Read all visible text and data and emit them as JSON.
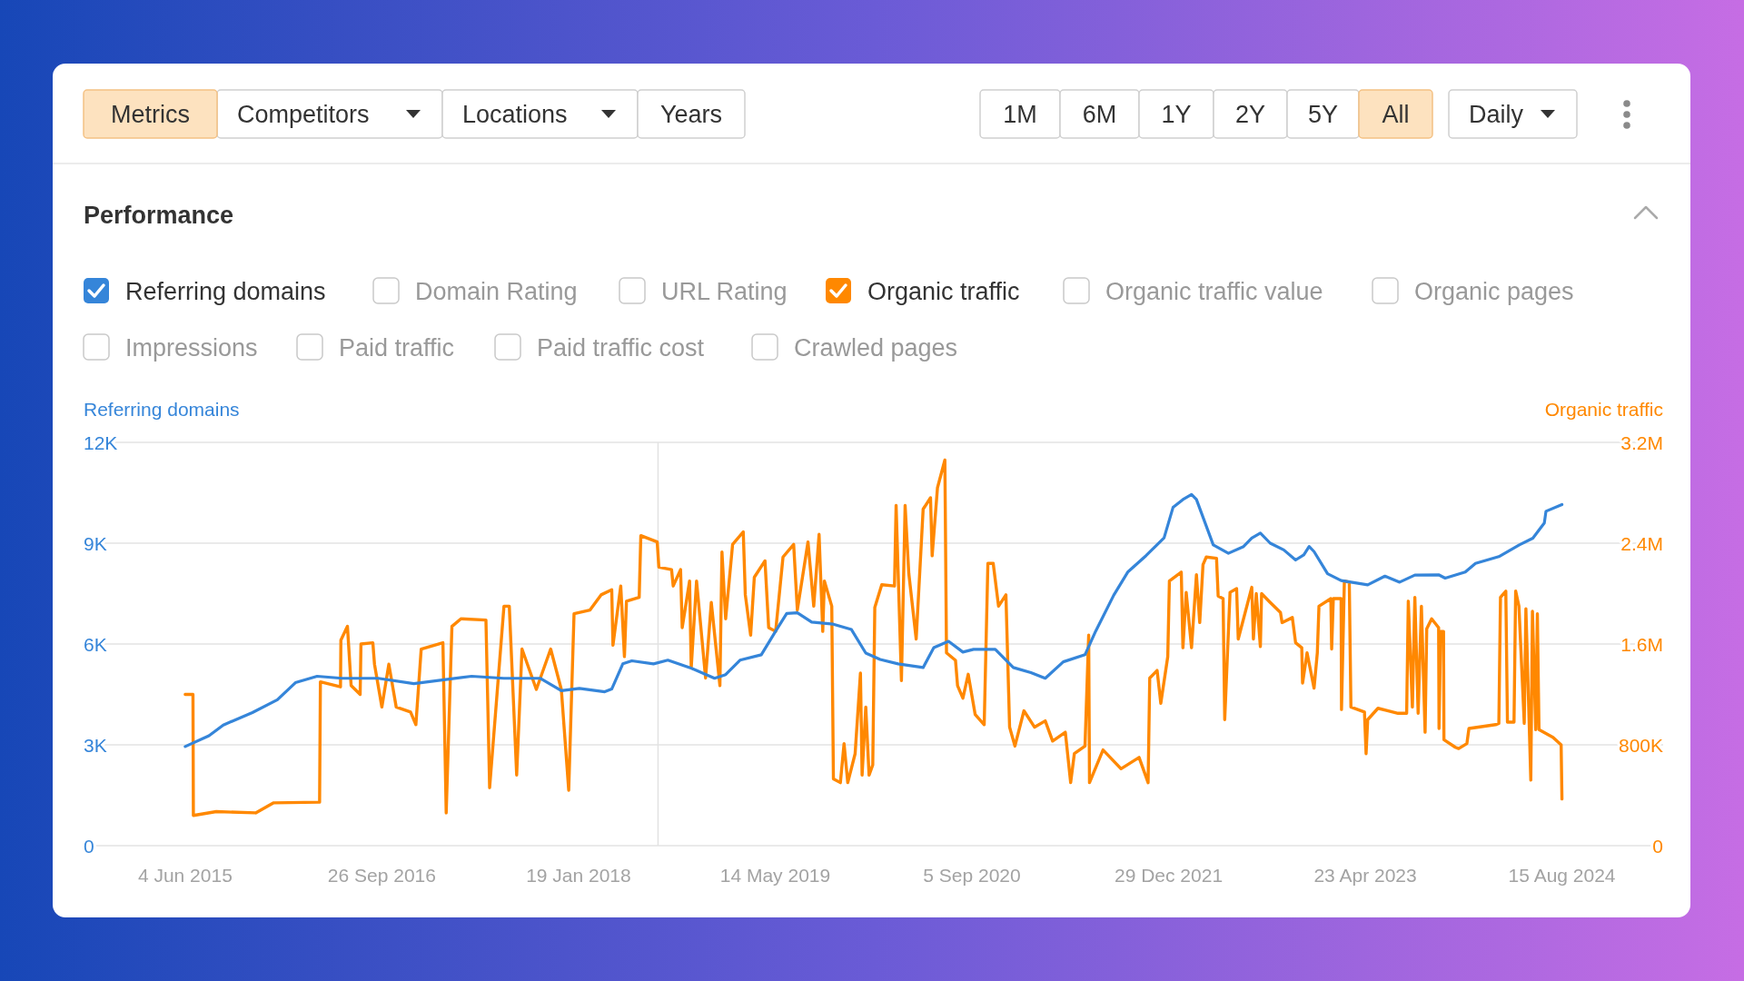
{
  "chart_data": {
    "type": "line",
    "title": "Performance",
    "ylabel": "Referring domains",
    "y2label": "Organic traffic",
    "annotations": [
      "Metrics",
      "Competitors",
      "Locations",
      "Years",
      "1M",
      "6M",
      "1Y",
      "2Y",
      "5Y",
      "All",
      "Daily",
      "Domain Rating",
      "URL Rating",
      "Organic traffic value",
      "Organic pages",
      "Impressions",
      "Paid traffic",
      "Paid traffic cost",
      "Crawled pages"
    ],
    "xlim": [
      "2014-09-29",
      "2025-04-19"
    ],
    "xticks": [
      {
        "value": "2015-06-04",
        "label": "4 Jun 2015"
      },
      {
        "value": "2016-09-26",
        "label": "26 Sep 2016"
      },
      {
        "value": "2018-01-19",
        "label": "19 Jan 2018"
      },
      {
        "value": "2019-05-14",
        "label": "14 May 2019"
      },
      {
        "value": "2020-09-05",
        "label": "5 Sep 2020"
      },
      {
        "value": "2021-12-29",
        "label": "29 Dec 2021"
      },
      {
        "value": "2023-04-23",
        "label": "23 Apr 2023"
      },
      {
        "value": "2024-08-15",
        "label": "15 Aug 2024"
      }
    ],
    "ylim": [
      0,
      12000
    ],
    "yticks": [
      0,
      {
        "value": 3000,
        "label": "3K"
      },
      {
        "value": 6000,
        "label": "6K"
      },
      {
        "value": 9000,
        "label": "9K"
      },
      {
        "value": 12000,
        "label": "12K"
      }
    ],
    "y2lim": [
      0,
      3200000
    ],
    "y2ticks": [
      0,
      {
        "value": 800000,
        "label": "800K"
      },
      {
        "value": 1600000,
        "label": "1.6M"
      },
      {
        "value": 2400000,
        "label": "2.4M"
      },
      {
        "value": 3200000,
        "label": "3.2M"
      }
    ],
    "grid": "y",
    "legend": "top left",
    "ref_lines": [
      {
        "axis": "x",
        "value": "2018-08-01",
        "color": "#e2e2e2"
      }
    ],
    "series": [
      {
        "name": "Referring domains",
        "color": "#3585d9",
        "x": [
          "2015-06-04",
          "2015-08-01",
          "2015-09-05",
          "2015-11-15",
          "2016-01-15",
          "2016-02-28",
          "2016-04-21",
          "2016-06-21",
          "2016-09-17",
          "2016-12-13",
          "2017-05-03",
          "2017-07-21",
          "2017-10-17",
          "2017-12-08",
          "2018-01-21",
          "2018-03-24",
          "2018-04-10",
          "2018-05-07",
          "2018-05-29",
          "2018-07-21",
          "2018-08-25",
          "2018-10-17",
          "2018-12-17",
          "2019-01-13",
          "2019-02-17",
          "2019-04-10",
          "2019-05-15",
          "2019-06-11",
          "2019-07-07",
          "2019-08-11",
          "2019-10-03",
          "2019-11-16",
          "2019-12-21",
          "2020-01-25",
          "2020-03-09",
          "2020-05-09",
          "2020-06-04",
          "2020-07-10",
          "2020-08-14",
          "2020-09-09",
          "2020-11-01",
          "2020-12-15",
          "2021-01-27",
          "2021-03-03",
          "2021-04-16",
          "2021-06-08",
          "2021-07-04",
          "2021-08-17",
          "2021-09-21",
          "2021-11-04",
          "2021-12-18",
          "2022-01-09",
          "2022-02-02",
          "2022-02-23",
          "2022-03-07",
          "2022-04-17",
          "2022-05-24",
          "2022-06-30",
          "2022-07-20",
          "2022-08-10",
          "2022-09-03",
          "2022-10-06",
          "2022-11-04",
          "2022-11-24",
          "2022-12-07",
          "2022-12-19",
          "2023-01-21",
          "2023-02-23",
          "2023-04-29",
          "2023-06-10",
          "2023-07-16",
          "2023-08-22",
          "2023-10-19",
          "2023-11-04",
          "2023-12-23",
          "2024-01-17",
          "2024-03-14",
          "2024-05-03",
          "2024-06-05",
          "2024-07-03",
          "2024-07-07",
          "2024-08-15"
        ],
        "values": [
          2950,
          3270,
          3590,
          3960,
          4340,
          4850,
          5040,
          4980,
          4980,
          4820,
          5040,
          4980,
          4980,
          4610,
          4680,
          4580,
          4660,
          5410,
          5500,
          5410,
          5520,
          5300,
          4980,
          5090,
          5520,
          5680,
          6380,
          6910,
          6930,
          6650,
          6590,
          6430,
          5730,
          5540,
          5410,
          5300,
          5890,
          6080,
          5760,
          5840,
          5840,
          5300,
          5150,
          4980,
          5470,
          5680,
          6380,
          7450,
          8150,
          8630,
          9160,
          10070,
          10300,
          10450,
          10300,
          8950,
          8700,
          8900,
          9150,
          9300,
          9000,
          8800,
          8500,
          8650,
          8900,
          8750,
          8090,
          7890,
          7760,
          8020,
          7840,
          8050,
          8060,
          7960,
          8140,
          8400,
          8600,
          8950,
          9150,
          9600,
          9950,
          10150
        ]
      },
      {
        "name": "Organic traffic",
        "color": "#ff8800",
        "axis": "y2",
        "x": [
          "2015-06-04",
          "2015-06-23",
          "2015-06-24",
          "2015-08-19",
          "2015-11-23",
          "2016-01-06",
          "2016-04-27",
          "2016-04-29",
          "2016-06-17",
          "2016-06-18",
          "2016-07-04",
          "2016-07-13",
          "2016-08-04",
          "2016-08-06",
          "2016-09-04",
          "2016-09-08",
          "2016-09-26",
          "2016-10-13",
          "2016-10-31",
          "2016-12-05",
          "2016-12-18",
          "2016-12-31",
          "2017-02-22",
          "2017-03-02",
          "2017-03-16",
          "2017-04-07",
          "2017-06-07",
          "2017-06-16",
          "2017-07-21",
          "2017-08-03",
          "2017-08-21",
          "2017-09-03",
          "2017-10-08",
          "2017-11-12",
          "2017-12-08",
          "2017-12-26",
          "2018-01-08",
          "2018-02-16",
          "2018-03-15",
          "2018-04-10",
          "2018-04-13",
          "2018-05-02",
          "2018-05-11",
          "2018-05-16",
          "2018-06-16",
          "2018-06-20",
          "2018-07-30",
          "2018-08-03",
          "2018-09-03",
          "2018-09-07",
          "2018-09-25",
          "2018-09-29",
          "2018-10-17",
          "2018-10-21",
          "2018-11-03",
          "2018-11-25",
          "2018-12-09",
          "2018-12-30",
          "2019-01-04",
          "2019-01-13",
          "2019-01-30",
          "2019-02-25",
          "2019-03-02",
          "2019-03-15",
          "2019-03-24",
          "2019-04-19",
          "2019-04-28",
          "2019-05-15",
          "2019-06-02",
          "2019-06-28",
          "2019-07-07",
          "2019-08-02",
          "2019-08-16",
          "2019-08-29",
          "2019-09-07",
          "2019-09-11",
          "2019-09-29",
          "2019-10-03",
          "2019-10-20",
          "2019-10-29",
          "2019-11-07",
          "2019-11-25",
          "2019-12-08",
          "2019-12-12",
          "2019-12-21",
          "2019-12-29",
          "2020-01-07",
          "2020-01-12",
          "2020-01-29",
          "2020-02-29",
          "2020-03-04",
          "2020-03-17",
          "2020-03-26",
          "2020-04-04",
          "2020-04-22",
          "2020-05-09",
          "2020-05-27",
          "2020-05-31",
          "2020-06-13",
          "2020-07-01",
          "2020-07-05",
          "2020-07-27",
          "2020-08-01",
          "2020-08-14",
          "2020-08-27",
          "2020-09-13",
          "2020-10-05",
          "2020-10-14",
          "2020-10-27",
          "2020-11-09",
          "2020-11-27",
          "2020-12-06",
          "2020-12-19",
          "2021-01-10",
          "2021-02-05",
          "2021-03-03",
          "2021-03-21",
          "2021-04-21",
          "2021-05-04",
          "2021-05-13",
          "2021-06-08",
          "2021-06-17",
          "2021-06-19",
          "2021-07-22",
          "2021-09-04",
          "2021-10-18",
          "2021-11-09",
          "2021-11-13",
          "2021-12-01",
          "2021-12-10",
          "2021-12-27",
          "2021-12-31",
          "2022-01-29",
          "2022-02-02",
          "2022-02-10",
          "2022-02-23",
          "2022-03-07",
          "2022-03-15",
          "2022-03-23",
          "2022-03-31",
          "2022-04-25",
          "2022-04-29",
          "2022-05-11",
          "2022-05-15",
          "2022-05-28",
          "2022-06-13",
          "2022-06-17",
          "2022-07-20",
          "2022-07-24",
          "2022-07-31",
          "2022-08-10",
          "2022-08-13",
          "2022-09-03",
          "2022-09-28",
          "2022-10-02",
          "2022-10-27",
          "2022-11-04",
          "2022-11-19",
          "2022-11-21",
          "2022-12-02",
          "2022-12-19",
          "2022-12-27",
          "2022-12-31",
          "2023-01-29",
          "2023-01-31",
          "2023-02-04",
          "2023-02-23",
          "2023-02-24",
          "2023-03-03",
          "2023-03-15",
          "2023-03-19",
          "2023-04-21",
          "2023-04-25",
          "2023-04-29",
          "2023-05-24",
          "2023-07-12",
          "2023-08-02",
          "2023-08-06",
          "2023-08-16",
          "2023-08-22",
          "2023-08-30",
          "2023-09-07",
          "2023-09-16",
          "2023-09-20",
          "2023-10-02",
          "2023-10-19",
          "2023-10-20",
          "2023-10-24",
          "2023-10-31",
          "2023-11-01",
          "2023-11-29",
          "2023-12-07",
          "2023-12-27",
          "2024-01-01",
          "2024-03-06",
          "2024-03-14",
          "2024-03-18",
          "2024-03-31",
          "2024-04-04",
          "2024-04-20",
          "2024-04-24",
          "2024-05-02",
          "2024-05-15",
          "2024-05-19",
          "2024-05-31",
          "2024-06-04",
          "2024-06-12",
          "2024-06-16",
          "2024-06-20",
          "2024-07-24",
          "2024-08-13",
          "2024-08-15"
        ],
        "values": [
          1200000,
          1200000,
          240000,
          270000,
          260000,
          340000,
          345000,
          1300000,
          1260000,
          1630000,
          1740000,
          1270000,
          1200000,
          1600000,
          1610000,
          1440000,
          1100000,
          1440000,
          1100000,
          1060000,
          960000,
          1560000,
          1610000,
          260000,
          1740000,
          1800000,
          1790000,
          460000,
          1900000,
          1900000,
          560000,
          1560000,
          1240000,
          1560000,
          1240000,
          440000,
          1840000,
          1870000,
          1990000,
          2030000,
          1590000,
          2060000,
          1500000,
          1940000,
          1970000,
          2460000,
          2410000,
          2210000,
          2190000,
          2060000,
          2190000,
          1730000,
          2100000,
          1410000,
          2100000,
          1330000,
          1930000,
          1270000,
          2330000,
          1800000,
          2390000,
          2490000,
          1990000,
          1670000,
          2130000,
          2260000,
          1730000,
          1700000,
          2290000,
          2390000,
          1870000,
          2410000,
          1900000,
          2470000,
          1700000,
          2100000,
          1900000,
          530000,
          500000,
          810000,
          500000,
          730000,
          1370000,
          560000,
          1100000,
          560000,
          640000,
          1890000,
          2070000,
          2060000,
          2700000,
          1310000,
          2700000,
          2160000,
          1640000,
          2670000,
          2760000,
          2300000,
          2840000,
          3060000,
          1530000,
          1470000,
          1270000,
          1170000,
          1360000,
          1040000,
          960000,
          2240000,
          2240000,
          1900000,
          1990000,
          940000,
          790000,
          1070000,
          940000,
          990000,
          830000,
          900000,
          500000,
          730000,
          790000,
          1670000,
          500000,
          760000,
          610000,
          700000,
          500000,
          1330000,
          1390000,
          1130000,
          1500000,
          2100000,
          2170000,
          1570000,
          2010000,
          1570000,
          2150000,
          1770000,
          2230000,
          2290000,
          2280000,
          1980000,
          1960000,
          1000000,
          2010000,
          2040000,
          1640000,
          2050000,
          1640000,
          2000000,
          1580000,
          2000000,
          1930000,
          1850000,
          1770000,
          1810000,
          1610000,
          1570000,
          1290000,
          1530000,
          1250000,
          1530000,
          1900000,
          1960000,
          1560000,
          1960000,
          1960000,
          1080000,
          2100000,
          2090000,
          1100000,
          1060000,
          730000,
          1000000,
          1090000,
          1050000,
          1050000,
          1940000,
          1100000,
          1970000,
          1050000,
          1900000,
          900000,
          1720000,
          1800000,
          1730000,
          930000,
          1700000,
          1700000,
          840000,
          780000,
          770000,
          810000,
          930000,
          960000,
          970000,
          1970000,
          2020000,
          980000,
          980000,
          2020000,
          1900000,
          970000,
          1880000,
          520000,
          1860000,
          920000,
          1840000,
          920000,
          860000,
          800000,
          370000
        ]
      }
    ]
  }
}
